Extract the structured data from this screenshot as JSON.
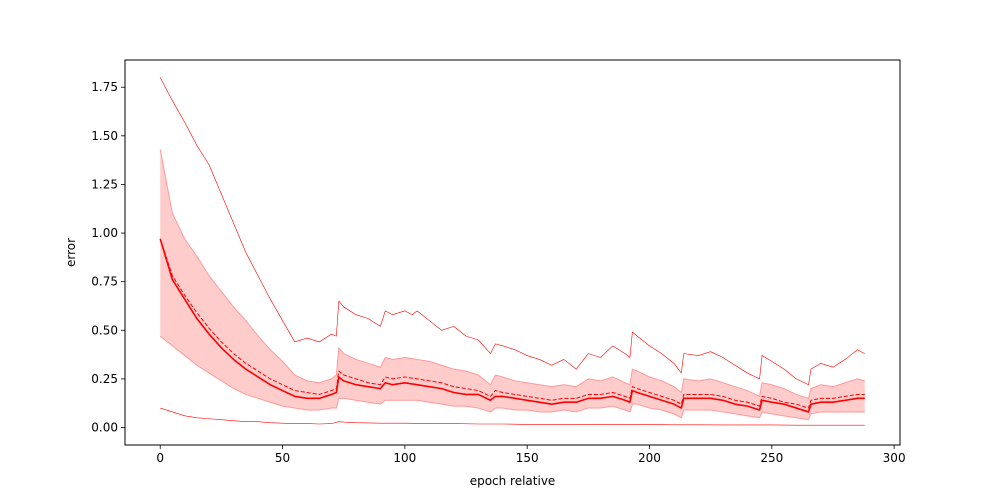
{
  "chart_data": {
    "type": "line",
    "title": "",
    "xlabel": "epoch relative",
    "ylabel": "error",
    "xlim": [
      -14.4,
      302.4
    ],
    "ylim": [
      -0.09,
      1.89
    ],
    "xticks": [
      0,
      50,
      100,
      150,
      200,
      250,
      300
    ],
    "yticks": [
      0.0,
      0.25,
      0.5,
      0.75,
      1.0,
      1.25,
      1.5,
      1.75
    ],
    "grid": false,
    "legend": "none",
    "colors": {
      "line": "#ff0000",
      "band_fill": "#ffcccc",
      "band_edge": "#ff9999"
    },
    "series": [
      {
        "role": "max",
        "style": "solid-thin",
        "x": [
          0,
          5,
          10,
          15,
          20,
          25,
          30,
          35,
          40,
          45,
          50,
          55,
          60,
          65,
          70,
          72,
          73,
          75,
          80,
          85,
          90,
          92,
          95,
          100,
          103,
          105,
          110,
          115,
          120,
          125,
          130,
          135,
          137,
          140,
          145,
          150,
          155,
          160,
          165,
          170,
          175,
          180,
          185,
          190,
          192,
          193,
          195,
          200,
          205,
          210,
          213,
          214,
          220,
          225,
          230,
          235,
          240,
          245,
          246,
          250,
          255,
          260,
          265,
          266,
          270,
          275,
          280,
          285,
          288
        ],
        "values": [
          1.8,
          1.68,
          1.57,
          1.45,
          1.35,
          1.2,
          1.05,
          0.9,
          0.78,
          0.66,
          0.55,
          0.44,
          0.46,
          0.44,
          0.48,
          0.47,
          0.65,
          0.62,
          0.58,
          0.56,
          0.52,
          0.6,
          0.58,
          0.6,
          0.58,
          0.6,
          0.55,
          0.5,
          0.52,
          0.47,
          0.45,
          0.38,
          0.43,
          0.42,
          0.4,
          0.37,
          0.35,
          0.32,
          0.35,
          0.3,
          0.38,
          0.36,
          0.42,
          0.38,
          0.36,
          0.49,
          0.47,
          0.42,
          0.38,
          0.33,
          0.28,
          0.38,
          0.37,
          0.39,
          0.36,
          0.32,
          0.28,
          0.25,
          0.37,
          0.34,
          0.3,
          0.25,
          0.22,
          0.3,
          0.33,
          0.31,
          0.35,
          0.4,
          0.38
        ]
      },
      {
        "role": "band-upper",
        "style": "band-edge",
        "x": [
          0,
          5,
          10,
          15,
          20,
          25,
          30,
          35,
          40,
          45,
          50,
          55,
          60,
          65,
          70,
          72,
          73,
          75,
          80,
          85,
          90,
          92,
          95,
          100,
          105,
          110,
          115,
          120,
          125,
          130,
          135,
          137,
          140,
          145,
          150,
          155,
          160,
          165,
          170,
          175,
          180,
          185,
          190,
          192,
          193,
          195,
          200,
          205,
          210,
          213,
          214,
          220,
          225,
          230,
          235,
          240,
          245,
          246,
          250,
          255,
          260,
          265,
          266,
          270,
          275,
          280,
          285,
          288
        ],
        "values": [
          1.43,
          1.1,
          0.97,
          0.88,
          0.78,
          0.7,
          0.62,
          0.55,
          0.47,
          0.4,
          0.34,
          0.27,
          0.24,
          0.23,
          0.25,
          0.27,
          0.41,
          0.38,
          0.35,
          0.33,
          0.31,
          0.36,
          0.35,
          0.36,
          0.35,
          0.34,
          0.32,
          0.3,
          0.29,
          0.27,
          0.22,
          0.27,
          0.26,
          0.24,
          0.23,
          0.22,
          0.21,
          0.22,
          0.21,
          0.25,
          0.24,
          0.26,
          0.23,
          0.22,
          0.3,
          0.29,
          0.26,
          0.24,
          0.21,
          0.18,
          0.25,
          0.24,
          0.25,
          0.23,
          0.21,
          0.19,
          0.16,
          0.23,
          0.22,
          0.2,
          0.17,
          0.15,
          0.2,
          0.22,
          0.21,
          0.23,
          0.25,
          0.24
        ]
      },
      {
        "role": "mean",
        "style": "dashed",
        "x": [
          0,
          5,
          10,
          15,
          20,
          25,
          30,
          35,
          40,
          45,
          50,
          55,
          60,
          65,
          70,
          72,
          73,
          75,
          80,
          85,
          90,
          92,
          95,
          100,
          105,
          110,
          115,
          120,
          125,
          130,
          135,
          137,
          140,
          145,
          150,
          155,
          160,
          165,
          170,
          175,
          180,
          185,
          190,
          192,
          193,
          195,
          200,
          205,
          210,
          213,
          214,
          220,
          225,
          230,
          235,
          240,
          245,
          246,
          250,
          255,
          260,
          265,
          266,
          270,
          275,
          280,
          285,
          288
        ],
        "values": [
          0.97,
          0.78,
          0.68,
          0.59,
          0.51,
          0.44,
          0.38,
          0.33,
          0.29,
          0.25,
          0.22,
          0.19,
          0.18,
          0.17,
          0.19,
          0.2,
          0.29,
          0.27,
          0.25,
          0.23,
          0.22,
          0.26,
          0.25,
          0.26,
          0.25,
          0.24,
          0.23,
          0.21,
          0.2,
          0.19,
          0.16,
          0.19,
          0.18,
          0.17,
          0.16,
          0.15,
          0.14,
          0.15,
          0.15,
          0.17,
          0.17,
          0.18,
          0.16,
          0.15,
          0.21,
          0.2,
          0.18,
          0.16,
          0.14,
          0.12,
          0.17,
          0.17,
          0.17,
          0.16,
          0.14,
          0.13,
          0.11,
          0.16,
          0.15,
          0.13,
          0.12,
          0.1,
          0.14,
          0.15,
          0.15,
          0.16,
          0.17,
          0.17
        ]
      },
      {
        "role": "median",
        "style": "solid-thick",
        "x": [
          0,
          5,
          10,
          15,
          20,
          25,
          30,
          35,
          40,
          45,
          50,
          55,
          60,
          65,
          70,
          72,
          73,
          75,
          80,
          85,
          90,
          92,
          95,
          100,
          105,
          110,
          115,
          120,
          125,
          130,
          135,
          137,
          140,
          145,
          150,
          155,
          160,
          165,
          170,
          175,
          180,
          185,
          190,
          192,
          193,
          195,
          200,
          205,
          210,
          213,
          214,
          220,
          225,
          230,
          235,
          240,
          245,
          246,
          250,
          255,
          260,
          265,
          266,
          270,
          275,
          280,
          285,
          288
        ],
        "values": [
          0.97,
          0.76,
          0.66,
          0.56,
          0.48,
          0.41,
          0.35,
          0.3,
          0.26,
          0.22,
          0.19,
          0.16,
          0.15,
          0.15,
          0.17,
          0.18,
          0.26,
          0.24,
          0.22,
          0.21,
          0.2,
          0.23,
          0.22,
          0.23,
          0.22,
          0.21,
          0.2,
          0.18,
          0.17,
          0.17,
          0.14,
          0.16,
          0.16,
          0.15,
          0.14,
          0.13,
          0.12,
          0.13,
          0.13,
          0.15,
          0.15,
          0.16,
          0.14,
          0.13,
          0.19,
          0.18,
          0.16,
          0.14,
          0.12,
          0.1,
          0.15,
          0.15,
          0.15,
          0.14,
          0.12,
          0.11,
          0.09,
          0.14,
          0.13,
          0.12,
          0.1,
          0.08,
          0.12,
          0.13,
          0.13,
          0.14,
          0.15,
          0.15
        ]
      },
      {
        "role": "band-lower",
        "style": "band-edge",
        "x": [
          0,
          5,
          10,
          15,
          20,
          25,
          30,
          35,
          40,
          45,
          50,
          55,
          60,
          65,
          70,
          72,
          73,
          75,
          80,
          85,
          90,
          92,
          95,
          100,
          105,
          110,
          115,
          120,
          125,
          130,
          135,
          137,
          140,
          145,
          150,
          155,
          160,
          165,
          170,
          175,
          180,
          185,
          190,
          192,
          193,
          195,
          200,
          205,
          210,
          213,
          214,
          220,
          225,
          230,
          235,
          240,
          245,
          246,
          250,
          255,
          260,
          265,
          266,
          270,
          275,
          280,
          285,
          288
        ],
        "values": [
          0.47,
          0.42,
          0.37,
          0.32,
          0.28,
          0.24,
          0.2,
          0.17,
          0.15,
          0.13,
          0.11,
          0.1,
          0.09,
          0.09,
          0.1,
          0.1,
          0.15,
          0.15,
          0.14,
          0.13,
          0.12,
          0.14,
          0.14,
          0.14,
          0.14,
          0.13,
          0.12,
          0.11,
          0.11,
          0.1,
          0.08,
          0.1,
          0.1,
          0.09,
          0.09,
          0.08,
          0.08,
          0.09,
          0.08,
          0.1,
          0.1,
          0.11,
          0.09,
          0.08,
          0.12,
          0.12,
          0.1,
          0.09,
          0.07,
          0.05,
          0.09,
          0.09,
          0.09,
          0.08,
          0.07,
          0.06,
          0.05,
          0.08,
          0.07,
          0.06,
          0.05,
          0.04,
          0.07,
          0.08,
          0.08,
          0.08,
          0.08,
          0.08
        ]
      },
      {
        "role": "min",
        "style": "solid-thin",
        "x": [
          0,
          5,
          10,
          15,
          20,
          25,
          30,
          35,
          40,
          45,
          50,
          55,
          60,
          65,
          70,
          73,
          75,
          80,
          90,
          100,
          110,
          120,
          130,
          140,
          150,
          160,
          170,
          180,
          190,
          200,
          210,
          220,
          230,
          240,
          250,
          260,
          270,
          280,
          288
        ],
        "values": [
          0.1,
          0.08,
          0.06,
          0.05,
          0.045,
          0.04,
          0.035,
          0.03,
          0.03,
          0.025,
          0.022,
          0.02,
          0.02,
          0.018,
          0.02,
          0.03,
          0.028,
          0.025,
          0.022,
          0.022,
          0.02,
          0.02,
          0.018,
          0.018,
          0.016,
          0.016,
          0.016,
          0.015,
          0.015,
          0.015,
          0.014,
          0.014,
          0.013,
          0.013,
          0.013,
          0.012,
          0.012,
          0.012,
          0.012
        ]
      }
    ]
  }
}
